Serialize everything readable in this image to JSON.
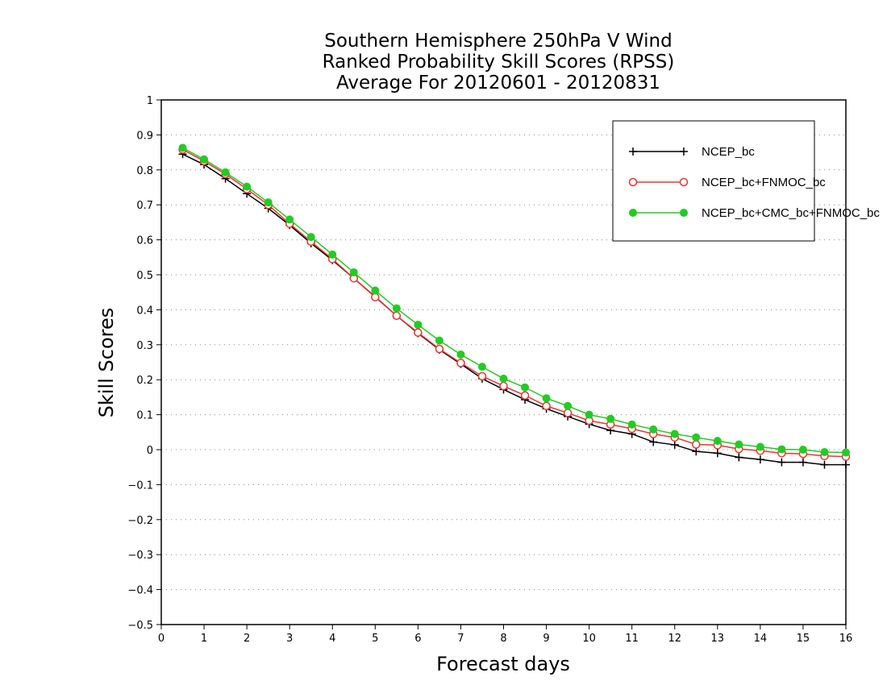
{
  "chart_data": {
    "type": "line",
    "title": [
      "Southern Hemisphere 250hPa V Wind",
      "Ranked Probability Skill Scores (RPSS)",
      "Average For 20120601 - 20120831"
    ],
    "xlabel": "Forecast days",
    "ylabel": "Skill Scores",
    "xlim": [
      0,
      16
    ],
    "ylim": [
      -0.5,
      1
    ],
    "x_ticks": [
      "0",
      "1",
      "2",
      "3",
      "4",
      "5",
      "6",
      "7",
      "8",
      "9",
      "10",
      "11",
      "12",
      "13",
      "14",
      "15",
      "16"
    ],
    "y_ticks": [
      "1",
      "0.9",
      "0.8",
      "0.7",
      "0.6",
      "0.5",
      "0.4",
      "0.3",
      "0.2",
      "0.1",
      "0",
      "−0.1",
      "−0.2",
      "−0.3",
      "−0.4",
      "−0.5"
    ],
    "grid": true,
    "legend_position": "top-right",
    "x": [
      0.5,
      1,
      1.5,
      2,
      2.5,
      3,
      3.5,
      4,
      4.5,
      5,
      5.5,
      6,
      6.5,
      7,
      7.5,
      8,
      8.5,
      9,
      9.5,
      10,
      10.5,
      11,
      11.5,
      12,
      12.5,
      13,
      13.5,
      14,
      14.5,
      15,
      15.5,
      16
    ],
    "series": [
      {
        "name": "NCEP_bc",
        "color": "#000000",
        "marker": "plus",
        "values": [
          0.845,
          0.815,
          0.775,
          0.732,
          0.69,
          0.642,
          0.59,
          0.542,
          0.49,
          0.437,
          0.383,
          0.333,
          0.286,
          0.245,
          0.203,
          0.172,
          0.143,
          0.117,
          0.095,
          0.073,
          0.055,
          0.045,
          0.022,
          0.014,
          -0.005,
          -0.01,
          -0.022,
          -0.028,
          -0.036,
          -0.036,
          -0.043,
          -0.043
        ]
      },
      {
        "name": "NCEP_bc+FNMOC_bc",
        "color": "#ee3333",
        "marker": "open-circle",
        "values": [
          0.858,
          0.825,
          0.788,
          0.745,
          0.7,
          0.646,
          0.595,
          0.545,
          0.49,
          0.436,
          0.383,
          0.335,
          0.288,
          0.248,
          0.21,
          0.182,
          0.155,
          0.125,
          0.105,
          0.083,
          0.072,
          0.06,
          0.045,
          0.035,
          0.015,
          0.013,
          0.002,
          -0.003,
          -0.01,
          -0.012,
          -0.018,
          -0.02
        ]
      },
      {
        "name": "NCEP_bc+CMC_bc+FNMOC_bc",
        "color": "#22cc22",
        "marker": "filled-circle",
        "values": [
          0.863,
          0.83,
          0.793,
          0.752,
          0.707,
          0.658,
          0.608,
          0.558,
          0.507,
          0.455,
          0.404,
          0.357,
          0.312,
          0.272,
          0.237,
          0.203,
          0.178,
          0.147,
          0.125,
          0.1,
          0.088,
          0.072,
          0.058,
          0.045,
          0.035,
          0.025,
          0.015,
          0.008,
          0.001,
          0.0,
          -0.007,
          -0.008
        ]
      }
    ]
  }
}
